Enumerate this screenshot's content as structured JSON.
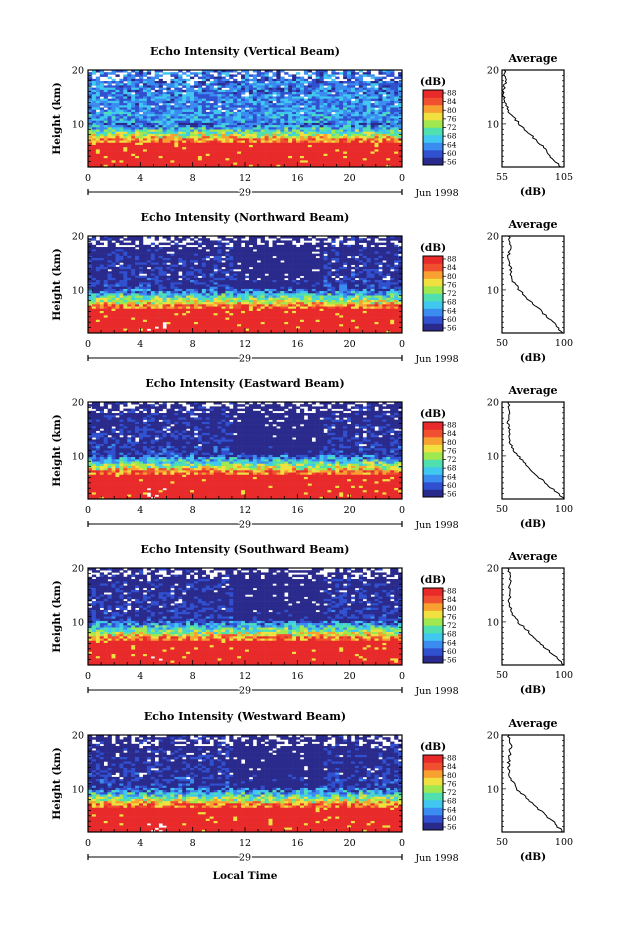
{
  "figure": {
    "xlabel": "Local Time",
    "date_label": "Jun 1998",
    "day_label": "29",
    "colorbar_title": "(dB)",
    "colorbar_ticks": [
      "56",
      "60",
      "64",
      "68",
      "72",
      "76",
      "80",
      "84",
      "88"
    ],
    "colorbar_colors": [
      "#2a2a8c",
      "#3050d0",
      "#3a8cf0",
      "#40c8f0",
      "#50e0b0",
      "#a0e850",
      "#f0e040",
      "#f8a030",
      "#f05030",
      "#e82a2a"
    ],
    "profile_title": "Average",
    "profile_xlabel": "(dB)"
  },
  "chart_data": [
    {
      "type": "heatmap",
      "title": "Echo Intensity (Vertical Beam)",
      "ylabel": "Height (km)",
      "yticks": [
        "20",
        "10"
      ],
      "xticks": [
        "0",
        "4",
        "8",
        "12",
        "16",
        "20",
        "0"
      ],
      "x_unit": "hours (local time)",
      "ylim_km": [
        2,
        20
      ],
      "colorbar_range_db": [
        56,
        88
      ],
      "profile": {
        "title": "Average",
        "xticks": [
          "55",
          "105"
        ],
        "xlim": [
          55,
          105
        ],
        "heights_km": [
          2,
          4,
          6,
          8,
          10,
          12,
          14,
          16,
          18,
          20
        ],
        "values_db": [
          103,
          94,
          87,
          78,
          69,
          61,
          58,
          56,
          58,
          57
        ]
      }
    },
    {
      "type": "heatmap",
      "title": "Echo Intensity (Northward Beam)",
      "ylabel": "Height (km)",
      "yticks": [
        "20",
        "10"
      ],
      "xticks": [
        "0",
        "4",
        "8",
        "12",
        "16",
        "20",
        "0"
      ],
      "x_unit": "hours (local time)",
      "ylim_km": [
        2,
        20
      ],
      "colorbar_range_db": [
        56,
        88
      ],
      "profile": {
        "title": "Average",
        "xticks": [
          "50",
          "100"
        ],
        "xlim": [
          50,
          100
        ],
        "heights_km": [
          2,
          4,
          6,
          8,
          10,
          12,
          14,
          16,
          18,
          20
        ],
        "values_db": [
          99,
          91,
          82,
          72,
          64,
          58,
          57,
          55,
          57,
          56
        ]
      }
    },
    {
      "type": "heatmap",
      "title": "Echo Intensity (Eastward Beam)",
      "ylabel": "Height (km)",
      "yticks": [
        "20",
        "10"
      ],
      "xticks": [
        "0",
        "4",
        "8",
        "12",
        "16",
        "20",
        "0"
      ],
      "x_unit": "hours (local time)",
      "ylim_km": [
        2,
        20
      ],
      "colorbar_range_db": [
        56,
        88
      ],
      "profile": {
        "title": "Average",
        "xticks": [
          "50",
          "100"
        ],
        "xlim": [
          50,
          100
        ],
        "heights_km": [
          2,
          4,
          6,
          8,
          10,
          12,
          14,
          16,
          18,
          20
        ],
        "values_db": [
          100,
          90,
          80,
          71,
          63,
          57,
          56,
          55,
          56,
          55
        ]
      }
    },
    {
      "type": "heatmap",
      "title": "Echo Intensity (Southward Beam)",
      "ylabel": "Height (km)",
      "yticks": [
        "20",
        "10"
      ],
      "xticks": [
        "0",
        "4",
        "8",
        "12",
        "16",
        "20",
        "0"
      ],
      "x_unit": "hours (local time)",
      "ylim_km": [
        2,
        20
      ],
      "colorbar_range_db": [
        56,
        88
      ],
      "profile": {
        "title": "Average",
        "xticks": [
          "50",
          "100"
        ],
        "xlim": [
          50,
          100
        ],
        "heights_km": [
          2,
          4,
          6,
          8,
          10,
          12,
          14,
          16,
          18,
          20
        ],
        "values_db": [
          100,
          91,
          81,
          72,
          63,
          57,
          56,
          56,
          57,
          55
        ]
      }
    },
    {
      "type": "heatmap",
      "title": "Echo Intensity (Westward Beam)",
      "ylabel": "Height (km)",
      "yticks": [
        "20",
        "10"
      ],
      "xticks": [
        "0",
        "4",
        "8",
        "12",
        "16",
        "20",
        "0"
      ],
      "x_unit": "hours (local time)",
      "ylim_km": [
        2,
        20
      ],
      "colorbar_range_db": [
        56,
        88
      ],
      "profile": {
        "title": "Average",
        "xticks": [
          "50",
          "100"
        ],
        "xlim": [
          50,
          100
        ],
        "heights_km": [
          2,
          4,
          6,
          8,
          10,
          12,
          14,
          16,
          18,
          20
        ],
        "values_db": [
          99,
          91,
          81,
          71,
          62,
          57,
          55,
          56,
          57,
          55
        ]
      }
    }
  ]
}
